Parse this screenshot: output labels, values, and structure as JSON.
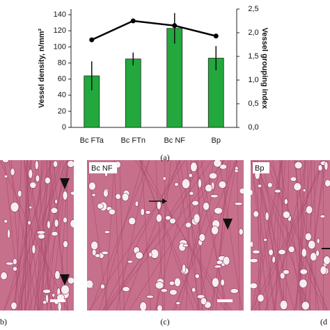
{
  "chart_data": {
    "type": "bar",
    "categories": [
      "Bc FTa",
      "Bc FTn",
      "Bc NF",
      "Bp"
    ],
    "series": [
      {
        "name": "Vessel density",
        "color": "#22a83c",
        "values": [
          64,
          85,
          123,
          86
        ],
        "errors": [
          18,
          8,
          19,
          15
        ]
      },
      {
        "name": "Vessel grouping index",
        "color": "#000000",
        "type": "line",
        "axis": "y2",
        "values": [
          1.85,
          2.25,
          2.15,
          1.93
        ]
      }
    ],
    "ylabel": "Vessel density, n/mm²",
    "y2label": "Vessel grouping index",
    "ylim": [
      0,
      147
    ],
    "yticks": [
      0,
      20,
      40,
      60,
      80,
      100,
      120,
      140
    ],
    "y2lim": [
      0,
      2.5
    ],
    "y2ticks": [
      {
        "value": 0,
        "label": "0,0"
      },
      {
        "value": 0.5,
        "label": "0,5"
      },
      {
        "value": 1,
        "label": "1,0"
      },
      {
        "value": 1.5,
        "label": "1,5"
      },
      {
        "value": 2,
        "label": "2,0"
      },
      {
        "value": 2.5,
        "label": "2,5"
      }
    ]
  },
  "panels": {
    "a": "(a)",
    "b": "(b)",
    "c": "(c)",
    "d": "(d",
    "c_tag": "Bc NF",
    "d_tag": "Bp"
  }
}
